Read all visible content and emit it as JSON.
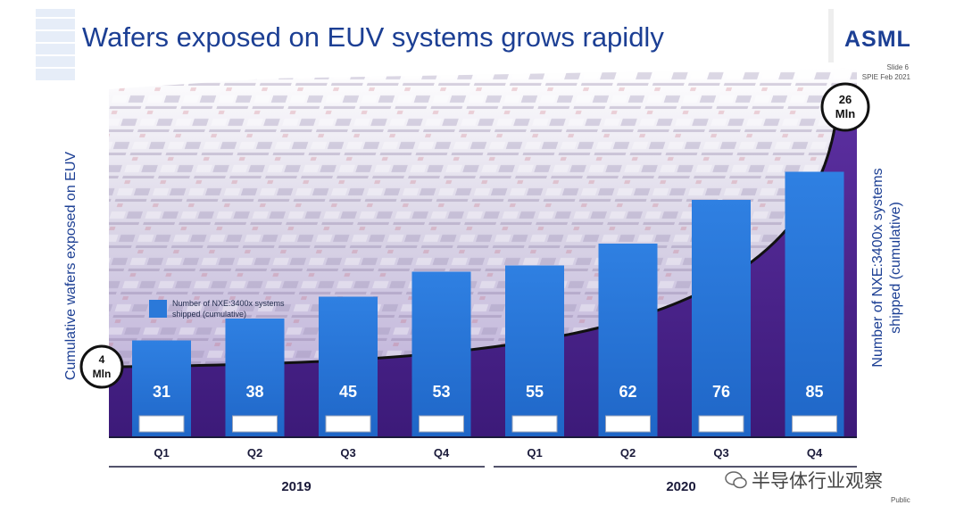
{
  "slide": {
    "title": "Wafers exposed on EUV systems grows rapidly",
    "logo": "ASML",
    "slide_number": "Slide 6",
    "event": "SPIE Feb 2021",
    "classification": "Public",
    "watermark": "半导体行业观察"
  },
  "chart_data": {
    "type": "bar",
    "categories": [
      "Q1",
      "Q2",
      "Q3",
      "Q4",
      "Q1",
      "Q2",
      "Q3",
      "Q4"
    ],
    "year_groups": [
      {
        "label": "2019",
        "categories": [
          "Q1",
          "Q2",
          "Q3",
          "Q4"
        ]
      },
      {
        "label": "2020",
        "categories": [
          "Q1",
          "Q2",
          "Q3",
          "Q4"
        ]
      }
    ],
    "series": [
      {
        "name": "Number of NXE:3400x systems shipped (cumulative)",
        "values": [
          31,
          38,
          45,
          53,
          55,
          62,
          76,
          85
        ],
        "value_labels": [
          "31",
          "38",
          "45",
          "53",
          "55",
          "62",
          "76",
          "85"
        ]
      }
    ],
    "ylim": [
      0,
      100
    ],
    "ylabel_left": "Cumulative wafers exposed on EUV",
    "ylabel_right": "Number of NXE:3400x systems shipped (cumulative)",
    "curve_start": {
      "value": 4,
      "unit": "Mln",
      "label": "4 Mln"
    },
    "curve_end": {
      "value": 26,
      "unit": "Mln",
      "label": "26 Mln"
    },
    "bar_color": "#2b79d9",
    "curve_color": "#111111",
    "legend": "left"
  }
}
